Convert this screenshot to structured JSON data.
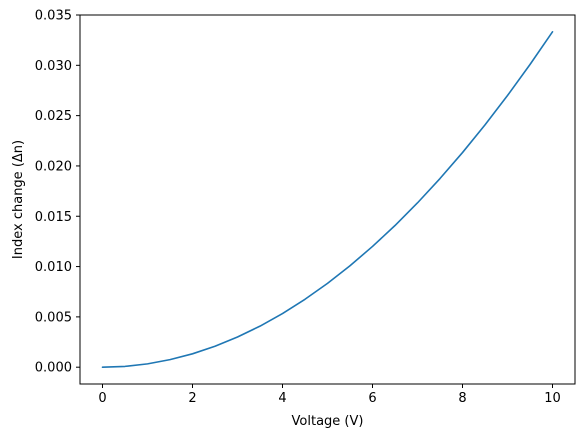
{
  "chart_data": {
    "type": "line",
    "title": "",
    "xlabel": "Voltage (V)",
    "ylabel": "Index change (Δn)",
    "xlim": [
      -0.5,
      10.5
    ],
    "ylim": [
      -0.00167,
      0.035
    ],
    "xticks": [
      0,
      2,
      4,
      6,
      8,
      10
    ],
    "xtick_labels": [
      "0",
      "2",
      "4",
      "6",
      "8",
      "10"
    ],
    "yticks": [
      0.0,
      0.005,
      0.01,
      0.015,
      0.02,
      0.025,
      0.03,
      0.035
    ],
    "ytick_labels": [
      "0.000",
      "0.005",
      "0.010",
      "0.015",
      "0.020",
      "0.025",
      "0.030",
      "0.035"
    ],
    "grid": false,
    "legend": "none",
    "series": [
      {
        "color": "#1f77b4",
        "x": [
          0,
          0.5,
          1,
          1.5,
          2,
          2.5,
          3,
          3.5,
          4,
          4.5,
          5,
          5.5,
          6,
          6.5,
          7,
          7.5,
          8,
          8.5,
          9,
          9.5,
          10
        ],
        "y": [
          0.0,
          8e-05,
          0.00033,
          0.00075,
          0.00133,
          0.00208,
          0.003,
          0.00408,
          0.00533,
          0.00675,
          0.00833,
          0.01008,
          0.012,
          0.01408,
          0.01633,
          0.01875,
          0.02133,
          0.02408,
          0.027,
          0.03008,
          0.03333
        ]
      }
    ]
  }
}
